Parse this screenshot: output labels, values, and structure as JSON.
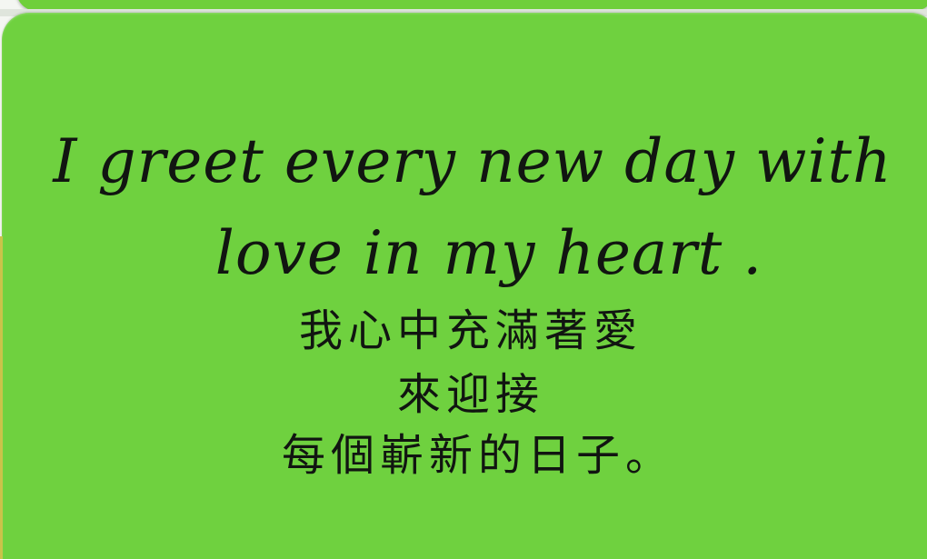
{
  "card": {
    "english_line_1": "I greet every new day with",
    "english_line_2": "love in my heart .",
    "chinese_line_1": "我心中充滿著愛",
    "chinese_line_2": "來迎接",
    "chinese_line_3": "每個嶄新的日子。"
  },
  "colors": {
    "card_green": "#6fd13f",
    "text": "#111511"
  }
}
